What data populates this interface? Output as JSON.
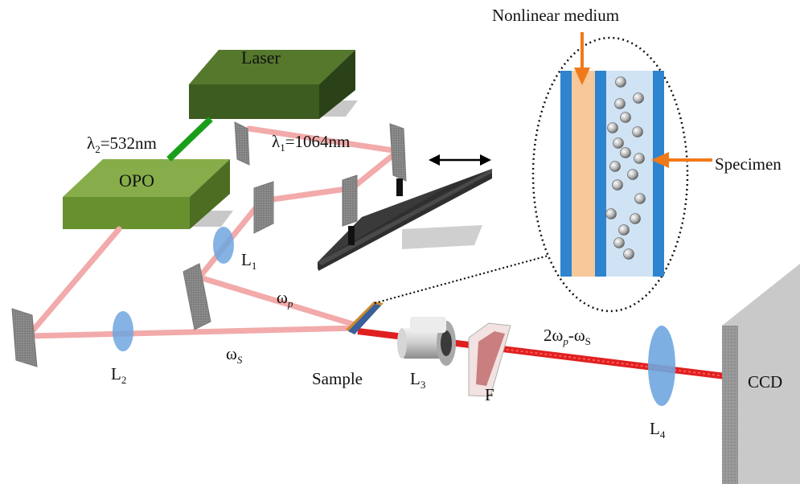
{
  "components": {
    "laser": "Laser",
    "opo": "OPO",
    "lens1": {
      "main": "L",
      "sub": "1"
    },
    "lens2": {
      "main": "L",
      "sub": "2"
    },
    "lens3": {
      "main": "L",
      "sub": "3"
    },
    "lens4": {
      "main": "L",
      "sub": "4"
    },
    "sample": "Sample",
    "filter": "F",
    "ccd": "CCD"
  },
  "beams": {
    "lambda2": {
      "main": "λ",
      "sub": "2",
      "rest": "=532nm"
    },
    "lambda1": {
      "main": "λ",
      "sub": "1",
      "rest": "=1064nm"
    },
    "omega_p": {
      "main": "ω",
      "sub": "p"
    },
    "omega_s": {
      "main": "ω",
      "sub": "S"
    },
    "output": {
      "a": "2ω",
      "b": "p",
      "c": "-ω",
      "d": "S"
    }
  },
  "inset": {
    "nonlinear_medium": "Nonlinear medium",
    "specimen": "Specimen"
  },
  "colors": {
    "laser_box": "#3f5e20",
    "opo_box": "#6a9234",
    "pump_beam": "#f2aaaa",
    "green_beam": "#1a9e1a",
    "output_beam": "#e02020",
    "lens": "#6fa6df",
    "arrow": "#f07a1a",
    "stage": "#3a3a3a"
  }
}
